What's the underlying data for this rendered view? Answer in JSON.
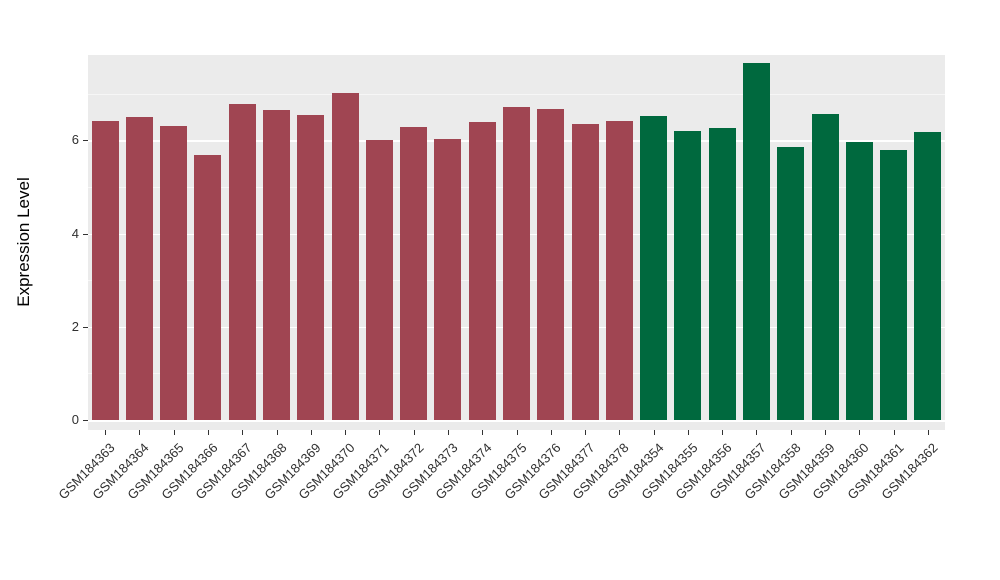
{
  "chart_data": {
    "type": "bar",
    "title": "",
    "xlabel": "",
    "ylabel": "Expression Level",
    "ylim": [
      0,
      7.83
    ],
    "yticks": [
      0,
      2,
      4,
      6
    ],
    "yticks_minor": [
      1,
      3,
      5,
      7
    ],
    "grid": "on",
    "panel_background": "#EBEBEB",
    "gridline_color": "#FFFFFF",
    "group_colors": {
      "group1": "#A04552",
      "group2": "#00693E"
    },
    "categories": [
      "GSM184363",
      "GSM184364",
      "GSM184365",
      "GSM184366",
      "GSM184367",
      "GSM184368",
      "GSM184369",
      "GSM184370",
      "GSM184371",
      "GSM184372",
      "GSM184373",
      "GSM184374",
      "GSM184375",
      "GSM184376",
      "GSM184377",
      "GSM184378",
      "GSM184354",
      "GSM184355",
      "GSM184356",
      "GSM184357",
      "GSM184358",
      "GSM184359",
      "GSM184360",
      "GSM184361",
      "GSM184362"
    ],
    "values": [
      6.42,
      6.51,
      6.3,
      5.68,
      6.78,
      6.65,
      6.55,
      7.02,
      6.01,
      6.28,
      6.03,
      6.4,
      6.72,
      6.68,
      6.35,
      6.42,
      6.52,
      6.2,
      6.27,
      7.66,
      5.85,
      6.57,
      5.96,
      5.79,
      6.17
    ],
    "bar_colors": [
      "#A04552",
      "#A04552",
      "#A04552",
      "#A04552",
      "#A04552",
      "#A04552",
      "#A04552",
      "#A04552",
      "#A04552",
      "#A04552",
      "#A04552",
      "#A04552",
      "#A04552",
      "#A04552",
      "#A04552",
      "#A04552",
      "#00693E",
      "#00693E",
      "#00693E",
      "#00693E",
      "#00693E",
      "#00693E",
      "#00693E",
      "#00693E",
      "#00693E"
    ]
  }
}
